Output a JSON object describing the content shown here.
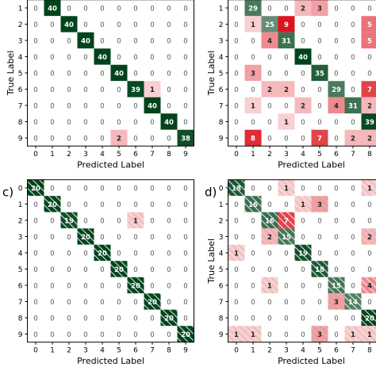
{
  "chart_data": [
    {
      "type": "heatmap",
      "ylabel": "True Label",
      "xlabel": "Predicted Label",
      "hatch": false,
      "x_categories": [
        "0",
        "1",
        "2",
        "3",
        "4",
        "5",
        "6",
        "7",
        "8",
        "9"
      ],
      "y_categories": [
        "1",
        "2",
        "3",
        "4",
        "5",
        "6",
        "7",
        "8",
        "9"
      ],
      "values": [
        [
          0,
          40,
          0,
          0,
          0,
          0,
          0,
          0,
          0,
          0
        ],
        [
          0,
          0,
          40,
          0,
          0,
          0,
          0,
          0,
          0,
          0
        ],
        [
          0,
          0,
          0,
          40,
          0,
          0,
          0,
          0,
          0,
          0
        ],
        [
          0,
          0,
          0,
          0,
          40,
          0,
          0,
          0,
          0,
          0
        ],
        [
          0,
          0,
          0,
          0,
          0,
          40,
          0,
          0,
          0,
          0
        ],
        [
          0,
          0,
          0,
          0,
          0,
          0,
          39,
          1,
          0,
          0
        ],
        [
          0,
          0,
          0,
          0,
          0,
          0,
          0,
          40,
          0,
          0
        ],
        [
          0,
          0,
          0,
          0,
          0,
          0,
          0,
          0,
          40,
          0
        ],
        [
          0,
          0,
          0,
          0,
          0,
          2,
          0,
          0,
          0,
          38
        ]
      ]
    },
    {
      "type": "heatmap",
      "ylabel": "True Label",
      "xlabel": "Predicted Label",
      "hatch": false,
      "x_categories": [
        "0",
        "1",
        "2",
        "3",
        "4",
        "5",
        "6",
        "7",
        "8"
      ],
      "y_categories": [
        "1",
        "2",
        "3",
        "4",
        "5",
        "6",
        "7",
        "8",
        "9"
      ],
      "values": [
        [
          0,
          29,
          0,
          0,
          2,
          3,
          0,
          0,
          0
        ],
        [
          0,
          1,
          25,
          9,
          0,
          0,
          0,
          0,
          5
        ],
        [
          0,
          0,
          4,
          31,
          0,
          0,
          0,
          0,
          5
        ],
        [
          0,
          0,
          0,
          0,
          40,
          0,
          0,
          0,
          0
        ],
        [
          0,
          3,
          0,
          0,
          0,
          35,
          0,
          0,
          0
        ],
        [
          0,
          0,
          2,
          2,
          0,
          0,
          29,
          0,
          7
        ],
        [
          0,
          1,
          0,
          0,
          2,
          0,
          4,
          31,
          2
        ],
        [
          0,
          0,
          0,
          1,
          0,
          0,
          0,
          0,
          39
        ],
        [
          0,
          8,
          0,
          0,
          0,
          7,
          0,
          2,
          2
        ]
      ]
    },
    {
      "type": "heatmap",
      "panel_label": "c)",
      "xlabel": "Predicted Label",
      "hatch": true,
      "x_categories": [
        "0",
        "1",
        "2",
        "3",
        "4",
        "5",
        "6",
        "7",
        "8",
        "9"
      ],
      "y_categories": [
        "0",
        "1",
        "2",
        "3",
        "4",
        "5",
        "6",
        "7",
        "8",
        "9"
      ],
      "values": [
        [
          20,
          0,
          0,
          0,
          0,
          0,
          0,
          0,
          0,
          0
        ],
        [
          0,
          20,
          0,
          0,
          0,
          0,
          0,
          0,
          0,
          0
        ],
        [
          0,
          0,
          19,
          0,
          0,
          0,
          1,
          0,
          0,
          0
        ],
        [
          0,
          0,
          0,
          20,
          0,
          0,
          0,
          0,
          0,
          0
        ],
        [
          0,
          0,
          0,
          0,
          20,
          0,
          0,
          0,
          0,
          0
        ],
        [
          0,
          0,
          0,
          0,
          0,
          20,
          0,
          0,
          0,
          0
        ],
        [
          0,
          0,
          0,
          0,
          0,
          0,
          20,
          0,
          0,
          0
        ],
        [
          0,
          0,
          0,
          0,
          0,
          0,
          0,
          20,
          0,
          0
        ],
        [
          0,
          0,
          0,
          0,
          0,
          0,
          0,
          0,
          20,
          0
        ],
        [
          0,
          0,
          0,
          0,
          0,
          0,
          0,
          0,
          0,
          20
        ]
      ]
    },
    {
      "type": "heatmap",
      "panel_label": "d)",
      "ylabel": "True Label",
      "xlabel": "Predicted Label",
      "hatch": true,
      "x_categories": [
        "0",
        "1",
        "2",
        "3",
        "4",
        "5",
        "6",
        "7",
        "8"
      ],
      "y_categories": [
        "0",
        "1",
        "2",
        "3",
        "4",
        "5",
        "6",
        "7",
        "8",
        "9"
      ],
      "values": [
        [
          18,
          0,
          0,
          1,
          0,
          0,
          0,
          0,
          1
        ],
        [
          0,
          16,
          0,
          0,
          1,
          3,
          0,
          0,
          0
        ],
        [
          0,
          0,
          16,
          7,
          0,
          0,
          0,
          0,
          0
        ],
        [
          0,
          0,
          2,
          15,
          0,
          0,
          0,
          0,
          2
        ],
        [
          1,
          0,
          0,
          0,
          19,
          0,
          0,
          0,
          0
        ],
        [
          0,
          0,
          0,
          0,
          0,
          18,
          0,
          0,
          0
        ],
        [
          0,
          0,
          1,
          0,
          0,
          0,
          15,
          0,
          4
        ],
        [
          0,
          0,
          0,
          0,
          0,
          0,
          3,
          14,
          0
        ],
        [
          0,
          0,
          0,
          0,
          0,
          0,
          0,
          0,
          20
        ],
        [
          1,
          1,
          0,
          0,
          0,
          3,
          0,
          1,
          1
        ]
      ]
    }
  ]
}
